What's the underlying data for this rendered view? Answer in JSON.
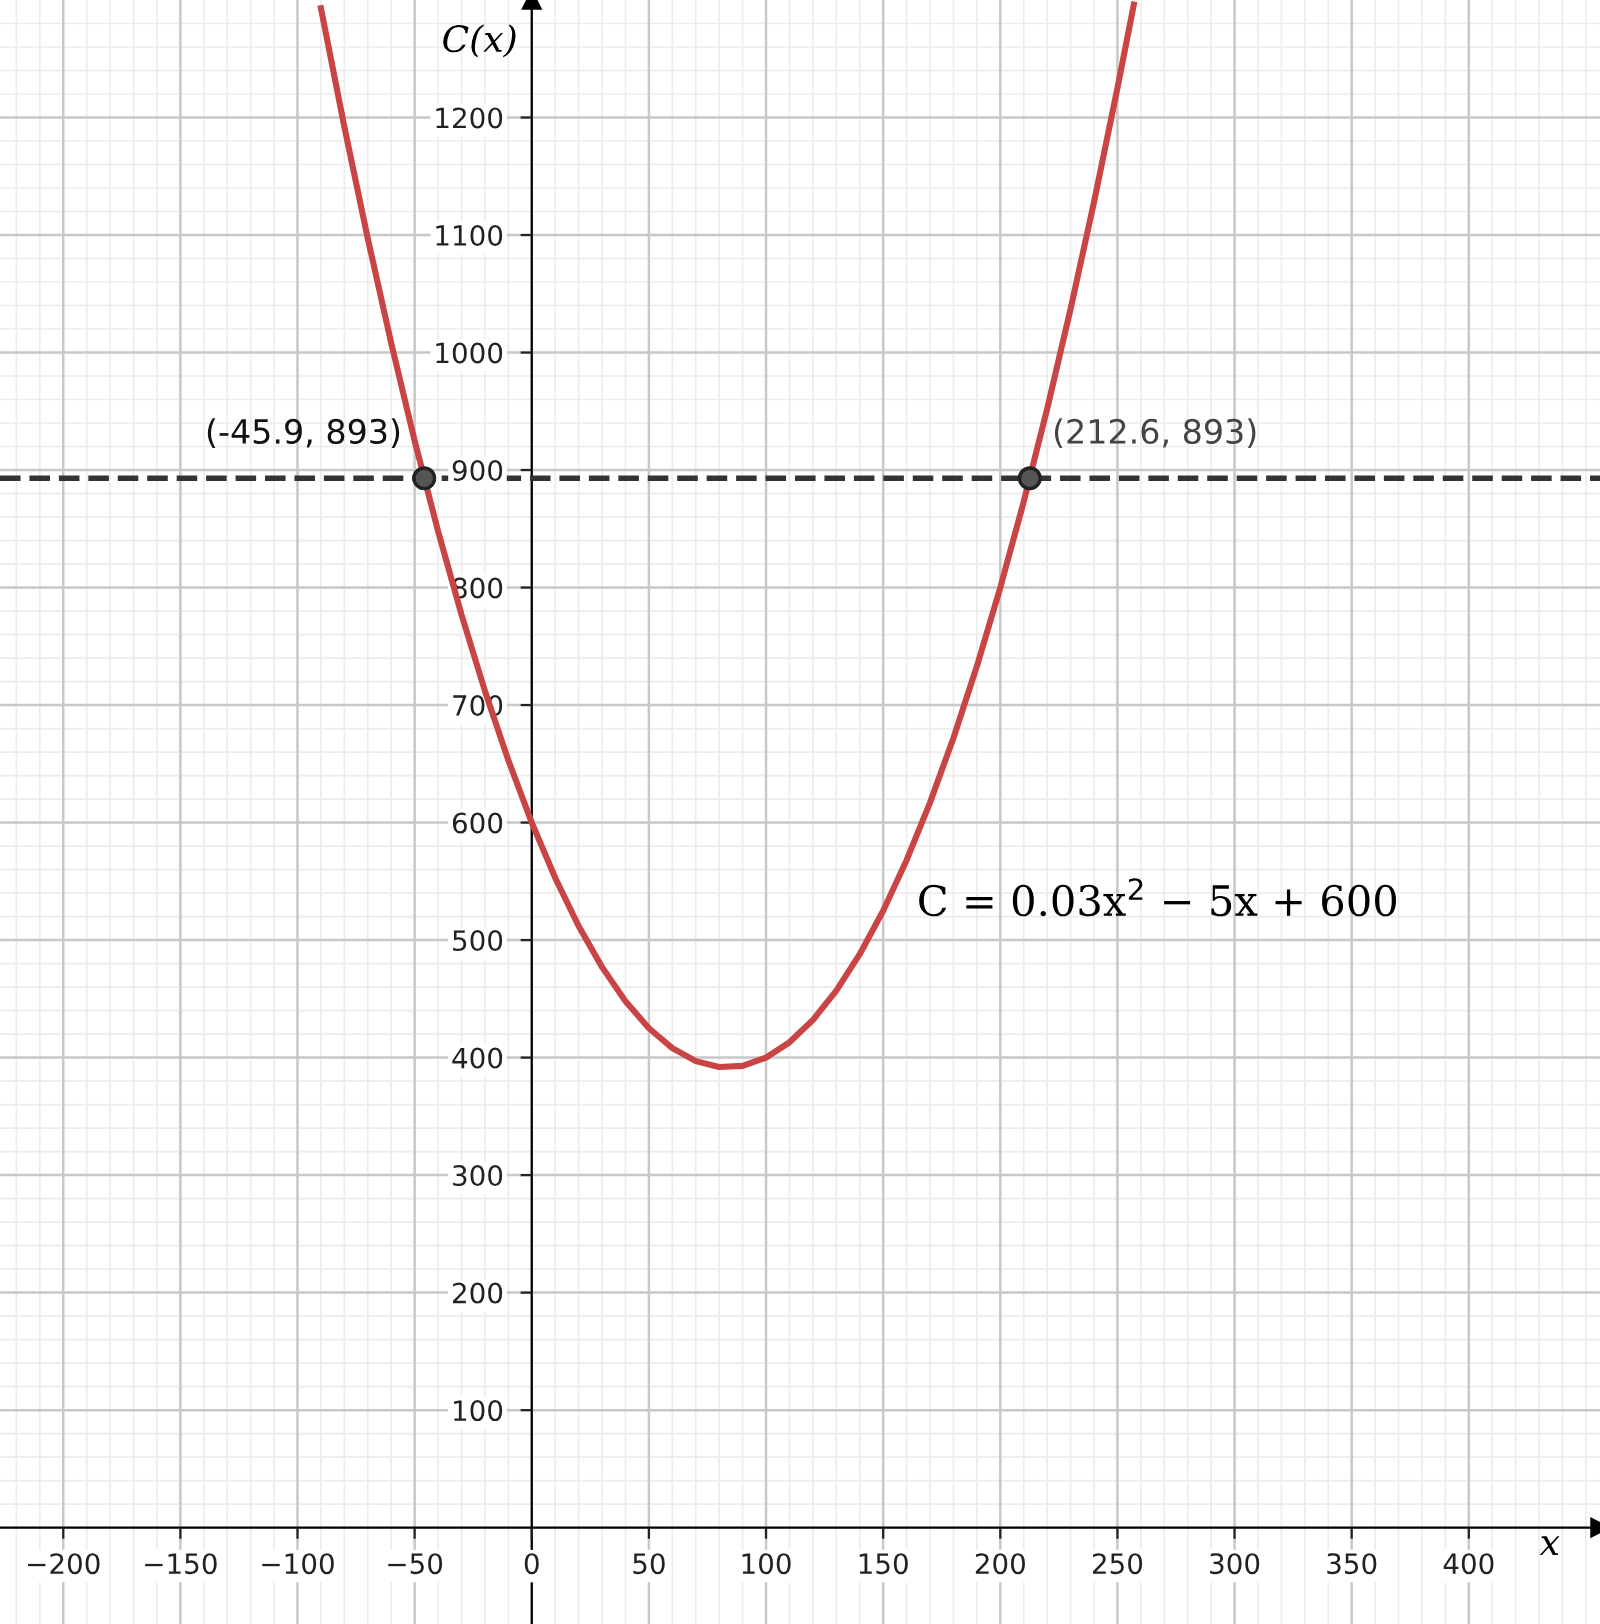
{
  "chart_data": {
    "type": "line",
    "xlabel": "x",
    "ylabel": "C(x)",
    "series": [
      {
        "color": "#c94545",
        "x": [
          -90,
          -80,
          -70,
          -60,
          -50,
          -40,
          -30,
          -20,
          -10,
          0,
          10,
          20,
          30,
          40,
          50,
          60,
          70,
          80,
          90,
          100,
          110,
          120,
          130,
          140,
          150,
          160,
          170,
          180,
          190,
          200,
          210,
          220,
          230,
          240,
          250,
          257
        ],
        "values": [
          1293,
          1192,
          1097,
          1008,
          925,
          848,
          777,
          712,
          653,
          600,
          553,
          512,
          477,
          448,
          425,
          408,
          397,
          392,
          393,
          400,
          413,
          432,
          457,
          488,
          525,
          568,
          617,
          672,
          733,
          800,
          873,
          952,
          1037,
          1128,
          1225,
          1296
        ]
      },
      {
        "type": "scatter",
        "color": "#555555",
        "marker": "circle",
        "x": [
          -45.9,
          212.6
        ],
        "values": [
          893,
          893
        ]
      }
    ],
    "ref_lines": [
      {
        "axis": "y",
        "value": 893,
        "color": "#333333",
        "line_style": "dashed"
      }
    ],
    "annotations": [
      {
        "text": "(-45.9, 893)",
        "x": -45.9,
        "y": 893
      },
      {
        "text": "(212.6, 893)",
        "x": 212.6,
        "y": 893
      },
      "C = 0.03x$^{2}$ − 5x + 600"
    ],
    "xlim": [
      -227,
      456
    ],
    "ylim": [
      -82,
      1300
    ],
    "xticks": [
      {
        "value": -200,
        "label": "−200"
      },
      {
        "value": -150,
        "label": "−150"
      },
      {
        "value": -100,
        "label": "−100"
      },
      {
        "value": -50,
        "label": "−50"
      },
      0,
      50,
      100,
      150,
      200,
      250,
      300,
      350,
      400
    ],
    "yticks": [
      100,
      200,
      300,
      400,
      500,
      600,
      700,
      800,
      900,
      1000,
      1100,
      1200
    ],
    "grid": true
  }
}
